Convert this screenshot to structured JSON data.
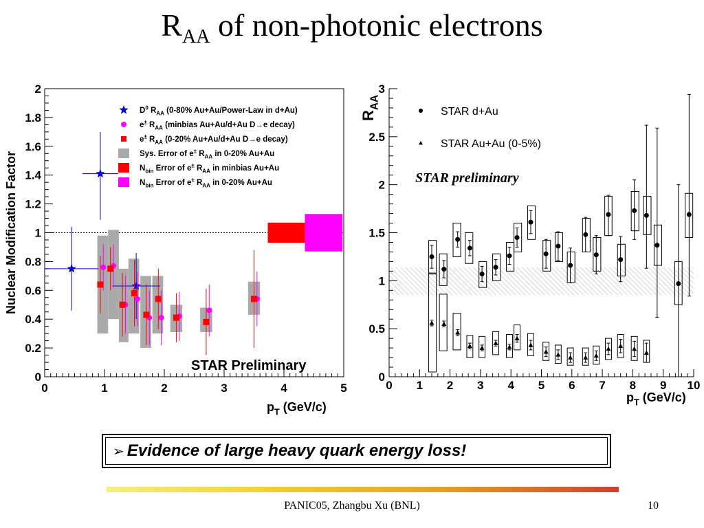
{
  "slide": {
    "title_main": "R",
    "title_sub": "AA",
    "title_rest": " of non-photonic electrons",
    "takeaway_arrow": "➢",
    "takeaway": "Evidence of large heavy quark energy loss!",
    "footer": "PANIC05,  Zhangbu Xu (BNL)",
    "page_number": "10"
  },
  "chart_data": [
    {
      "type": "scatter",
      "ylabel": "Nuclear Modification Factor",
      "xlabel_main": "p",
      "xlabel_sub": "T",
      "xlabel_rest": " (GeV/c)",
      "xlim": [
        0,
        5
      ],
      "ylim": [
        0,
        2
      ],
      "xticks": [
        "0",
        "1",
        "2",
        "3",
        "4",
        "5"
      ],
      "yticks": [
        "0",
        "0.2",
        "0.4",
        "0.6",
        "0.8",
        "1",
        "1.2",
        "1.4",
        "1.6",
        "1.8",
        "2"
      ],
      "reference_line": 1,
      "annotation": "STAR Preliminary",
      "legend": [
        {
          "symbol": "star",
          "color": "#0000cc",
          "parts": [
            {
              "t": "D"
            },
            {
              "t": "0",
              "sup": true
            },
            {
              "t": " R"
            },
            {
              "t": "AA",
              "sub": true
            },
            {
              "t": " (0-80% Au+Au/Power-Law in d+Au)"
            }
          ]
        },
        {
          "symbol": "circle",
          "color": "#ff00ff",
          "parts": [
            {
              "t": "e"
            },
            {
              "t": "±",
              "sup": true
            },
            {
              "t": " R"
            },
            {
              "t": "AA",
              "sub": true
            },
            {
              "t": " (minbias Au+Au/d+Au D"
            },
            {
              "t": "→"
            },
            {
              "t": "e decay)"
            }
          ]
        },
        {
          "symbol": "square",
          "color": "#ff0000",
          "parts": [
            {
              "t": "e"
            },
            {
              "t": "±",
              "sup": true
            },
            {
              "t": " R"
            },
            {
              "t": "AA",
              "sub": true
            },
            {
              "t": " (0-20% Au+Au/d+Au D"
            },
            {
              "t": "→"
            },
            {
              "t": "e decay)"
            }
          ]
        },
        {
          "symbol": "box",
          "color": "#aaaaaa",
          "parts": [
            {
              "t": "Sys. Error of e"
            },
            {
              "t": "±",
              "sup": true
            },
            {
              "t": " R"
            },
            {
              "t": "AA",
              "sub": true
            },
            {
              "t": " in 0-20% Au+Au"
            }
          ]
        },
        {
          "symbol": "box",
          "color": "#ff0000",
          "parts": [
            {
              "t": "N"
            },
            {
              "t": "bin",
              "sub": true
            },
            {
              "t": " Error of e"
            },
            {
              "t": "±",
              "sup": true
            },
            {
              "t": " R"
            },
            {
              "t": "AA",
              "sub": true
            },
            {
              "t": " in minbias Au+Au"
            }
          ]
        },
        {
          "symbol": "box",
          "color": "#ff00ff",
          "parts": [
            {
              "t": "N"
            },
            {
              "t": "bin",
              "sub": true
            },
            {
              "t": " Error of e"
            },
            {
              "t": "±",
              "sup": true
            },
            {
              "t": " R"
            },
            {
              "t": "AA",
              "sub": true
            },
            {
              "t": " in 0-20% Au+Au"
            }
          ]
        }
      ],
      "series": [
        {
          "marker": "star",
          "color": "#0000cc",
          "points": [
            {
              "x": 0.45,
              "y": 0.75,
              "xerr": 0.45,
              "ylo": 0.46,
              "yhi": 1.04
            },
            {
              "x": 0.93,
              "y": 1.41,
              "xerr": 0.3,
              "ylo": 1.09,
              "yhi": 1.7
            },
            {
              "x": 1.53,
              "y": 0.63,
              "xerr": 0.4,
              "ylo": 0.4,
              "yhi": 0.86
            }
          ]
        },
        {
          "marker": "circle",
          "color": "#ff00ff",
          "points": [
            {
              "x": 0.98,
              "y": 0.76,
              "ylo": 0.6,
              "yhi": 0.92
            },
            {
              "x": 1.15,
              "y": 0.77,
              "ylo": 0.62,
              "yhi": 0.92
            },
            {
              "x": 1.35,
              "y": 0.5,
              "ylo": 0.3,
              "yhi": 0.7
            },
            {
              "x": 1.55,
              "y": 0.54,
              "ylo": 0.35,
              "yhi": 0.73
            },
            {
              "x": 1.75,
              "y": 0.41,
              "ylo": 0.22,
              "yhi": 0.6
            },
            {
              "x": 1.95,
              "y": 0.41,
              "ylo": 0.22,
              "yhi": 0.6
            },
            {
              "x": 2.25,
              "y": 0.42,
              "ylo": 0.25,
              "yhi": 0.59
            },
            {
              "x": 2.75,
              "y": 0.46,
              "ylo": 0.28,
              "yhi": 0.64
            },
            {
              "x": 3.55,
              "y": 0.54,
              "ylo": 0.35,
              "yhi": 0.73
            }
          ]
        },
        {
          "marker": "square",
          "color": "#ff0000",
          "points": [
            {
              "x": 0.93,
              "y": 0.64,
              "ylo": 0.44,
              "yhi": 0.84
            },
            {
              "x": 1.1,
              "y": 0.75,
              "ylo": 0.6,
              "yhi": 0.9
            },
            {
              "x": 1.3,
              "y": 0.5,
              "ylo": 0.28,
              "yhi": 0.72
            },
            {
              "x": 1.5,
              "y": 0.58,
              "ylo": 0.35,
              "yhi": 0.81
            },
            {
              "x": 1.7,
              "y": 0.43,
              "ylo": 0.22,
              "yhi": 0.64
            },
            {
              "x": 1.9,
              "y": 0.54,
              "ylo": 0.33,
              "yhi": 0.75
            },
            {
              "x": 2.2,
              "y": 0.41,
              "ylo": 0.24,
              "yhi": 0.58
            },
            {
              "x": 2.7,
              "y": 0.38,
              "ylo": 0.15,
              "yhi": 0.61
            },
            {
              "x": 3.5,
              "y": 0.54,
              "ylo": 0.2,
              "yhi": 0.88
            }
          ]
        }
      ],
      "sys_boxes": [
        {
          "x0": 0.88,
          "x1": 1.06,
          "y0": 0.3,
          "y1": 0.98
        },
        {
          "x0": 1.06,
          "x1": 1.24,
          "y0": 0.4,
          "y1": 1.02
        },
        {
          "x0": 1.24,
          "x1": 1.4,
          "y0": 0.24,
          "y1": 0.75
        },
        {
          "x0": 1.4,
          "x1": 1.58,
          "y0": 0.3,
          "y1": 0.82
        },
        {
          "x0": 1.6,
          "x1": 1.78,
          "y0": 0.2,
          "y1": 0.7
        },
        {
          "x0": 1.8,
          "x1": 1.98,
          "y0": 0.3,
          "y1": 0.7
        },
        {
          "x0": 2.1,
          "x1": 2.3,
          "y0": 0.31,
          "y1": 0.5
        },
        {
          "x0": 2.6,
          "x1": 2.8,
          "y0": 0.31,
          "y1": 0.48
        },
        {
          "x0": 3.4,
          "x1": 3.6,
          "y0": 0.43,
          "y1": 0.66
        }
      ],
      "norm_boxes": [
        {
          "color": "#ff0000",
          "x0": 3.73,
          "x1": 4.35,
          "y0": 0.93,
          "y1": 1.07
        },
        {
          "color": "#ff00ff",
          "x0": 4.35,
          "x1": 4.98,
          "y0": 0.87,
          "y1": 1.13
        }
      ]
    },
    {
      "type": "scatter",
      "ylabel_main": "R",
      "ylabel_sub": "AA",
      "xlabel_main": "p",
      "xlabel_sub": "T",
      "xlabel_rest": " (GeV/c)",
      "xlim": [
        0,
        10
      ],
      "ylim": [
        0,
        3
      ],
      "xticks": [
        "0",
        "1",
        "2",
        "3",
        "4",
        "5",
        "6",
        "7",
        "8",
        "9",
        "10"
      ],
      "yticks": [
        "0",
        "0.5",
        "1",
        "1.5",
        "2",
        "2.5",
        "3"
      ],
      "annotation": "STAR preliminary",
      "band": {
        "y0": 0.85,
        "y1": 1.14
      },
      "legend": [
        {
          "symbol": "circle",
          "label": "STAR d+Au"
        },
        {
          "symbol": "triangle",
          "label": "STAR Au+Au (0-5%)"
        }
      ],
      "series": [
        {
          "name": "STAR d+Au",
          "marker": "circle",
          "points": [
            {
              "x": 1.4,
              "y": 1.25,
              "bx0": 1.3,
              "bx1": 1.55,
              "by0": 1.07,
              "by1": 1.42,
              "elo": 0.12,
              "ehi": 0.12
            },
            {
              "x": 1.8,
              "y": 1.12,
              "bx0": 1.65,
              "bx1": 1.9,
              "by0": 0.95,
              "by1": 1.28,
              "elo": 0.09,
              "ehi": 0.09
            },
            {
              "x": 2.25,
              "y": 1.43,
              "bx0": 2.1,
              "bx1": 2.35,
              "by0": 1.25,
              "by1": 1.6,
              "elo": 0.08,
              "ehi": 0.08
            },
            {
              "x": 2.65,
              "y": 1.34,
              "bx0": 2.5,
              "bx1": 2.75,
              "by0": 1.18,
              "by1": 1.5,
              "elo": 0.08,
              "ehi": 0.08
            },
            {
              "x": 3.05,
              "y": 1.07,
              "bx0": 2.95,
              "bx1": 3.2,
              "by0": 0.93,
              "by1": 1.2,
              "elo": 0.08,
              "ehi": 0.08
            },
            {
              "x": 3.5,
              "y": 1.14,
              "bx0": 3.4,
              "bx1": 3.65,
              "by0": 1.0,
              "by1": 1.28,
              "elo": 0.08,
              "ehi": 0.08
            },
            {
              "x": 3.95,
              "y": 1.26,
              "bx0": 3.85,
              "bx1": 4.1,
              "by0": 1.1,
              "by1": 1.4,
              "elo": 0.09,
              "ehi": 0.09
            },
            {
              "x": 4.2,
              "y": 1.45,
              "bx0": 4.1,
              "bx1": 4.35,
              "by0": 1.3,
              "by1": 1.6,
              "elo": 0.1,
              "ehi": 0.1
            },
            {
              "x": 4.65,
              "y": 1.61,
              "bx0": 4.55,
              "bx1": 4.8,
              "by0": 1.43,
              "by1": 1.78,
              "elo": 0.12,
              "ehi": 0.12
            },
            {
              "x": 5.15,
              "y": 1.28,
              "bx0": 5.05,
              "bx1": 5.3,
              "by0": 1.1,
              "by1": 1.42,
              "elo": 0.15,
              "ehi": 0.15
            },
            {
              "x": 5.55,
              "y": 1.36,
              "bx0": 5.45,
              "bx1": 5.7,
              "by0": 1.2,
              "by1": 1.5,
              "elo": 0.15,
              "ehi": 0.15
            },
            {
              "x": 5.95,
              "y": 1.16,
              "bx0": 5.85,
              "bx1": 6.1,
              "by0": 0.98,
              "by1": 1.3,
              "elo": 0.18,
              "ehi": 0.18
            },
            {
              "x": 6.45,
              "y": 1.48,
              "bx0": 6.35,
              "bx1": 6.6,
              "by0": 1.3,
              "by1": 1.65,
              "elo": 0.18,
              "ehi": 0.18
            },
            {
              "x": 6.8,
              "y": 1.27,
              "bx0": 6.7,
              "bx1": 6.95,
              "by0": 1.1,
              "by1": 1.45,
              "elo": 0.2,
              "ehi": 0.2
            },
            {
              "x": 7.2,
              "y": 1.69,
              "bx0": 7.08,
              "bx1": 7.32,
              "by0": 1.47,
              "by1": 1.88,
              "elo": 0.22,
              "ehi": 0.2
            },
            {
              "x": 7.6,
              "y": 1.22,
              "bx0": 7.5,
              "bx1": 7.75,
              "by0": 1.05,
              "by1": 1.38,
              "elo": 0.23,
              "ehi": 0.24
            },
            {
              "x": 8.05,
              "y": 1.73,
              "bx0": 7.95,
              "bx1": 8.2,
              "by0": 1.52,
              "by1": 1.93,
              "elo": 0.3,
              "ehi": 0.32
            },
            {
              "x": 8.45,
              "y": 1.68,
              "bx0": 8.35,
              "bx1": 8.6,
              "by0": 1.48,
              "by1": 1.88,
              "elo": 0.55,
              "ehi": 0.94
            },
            {
              "x": 8.8,
              "y": 1.37,
              "bx0": 8.7,
              "bx1": 8.95,
              "by0": 1.16,
              "by1": 1.58,
              "elo": 0.75,
              "ehi": 1.22
            },
            {
              "x": 9.5,
              "y": 0.97,
              "bx0": 9.38,
              "bx1": 9.62,
              "by0": 0.75,
              "by1": 1.2,
              "elo": 0.97,
              "ehi": 1.03
            },
            {
              "x": 9.85,
              "y": 1.69,
              "bx0": 9.72,
              "bx1": 9.97,
              "by0": 1.45,
              "by1": 1.91,
              "elo": 0.85,
              "ehi": 1.25
            }
          ]
        },
        {
          "name": "STAR Au+Au (0-5%)",
          "marker": "triangle",
          "points": [
            {
              "x": 1.4,
              "y": 0.56,
              "bx0": 1.3,
              "bx1": 1.55,
              "by0": 0.05,
              "by1": 1.08,
              "elo": 0.03,
              "ehi": 0.03
            },
            {
              "x": 1.8,
              "y": 0.55,
              "bx0": 1.65,
              "bx1": 1.9,
              "by0": 0.27,
              "by1": 0.86,
              "elo": 0.03,
              "ehi": 0.03
            },
            {
              "x": 2.25,
              "y": 0.46,
              "bx0": 2.1,
              "bx1": 2.35,
              "by0": 0.28,
              "by1": 0.66,
              "elo": 0.03,
              "ehi": 0.03
            },
            {
              "x": 2.65,
              "y": 0.32,
              "bx0": 2.55,
              "bx1": 2.75,
              "by0": 0.2,
              "by1": 0.43,
              "elo": 0.03,
              "ehi": 0.03
            },
            {
              "x": 3.05,
              "y": 0.3,
              "bx0": 2.95,
              "bx1": 3.15,
              "by0": 0.2,
              "by1": 0.42,
              "elo": 0.03,
              "ehi": 0.03
            },
            {
              "x": 3.5,
              "y": 0.35,
              "bx0": 3.4,
              "bx1": 3.6,
              "by0": 0.23,
              "by1": 0.47,
              "elo": 0.03,
              "ehi": 0.03
            },
            {
              "x": 3.95,
              "y": 0.31,
              "bx0": 3.85,
              "bx1": 4.05,
              "by0": 0.2,
              "by1": 0.44,
              "elo": 0.03,
              "ehi": 0.03
            },
            {
              "x": 4.2,
              "y": 0.4,
              "bx0": 4.1,
              "bx1": 4.3,
              "by0": 0.28,
              "by1": 0.54,
              "elo": 0.04,
              "ehi": 0.04
            },
            {
              "x": 4.65,
              "y": 0.33,
              "bx0": 4.55,
              "bx1": 4.75,
              "by0": 0.22,
              "by1": 0.45,
              "elo": 0.05,
              "ehi": 0.05
            },
            {
              "x": 5.15,
              "y": 0.26,
              "bx0": 5.05,
              "bx1": 5.25,
              "by0": 0.17,
              "by1": 0.36,
              "elo": 0.05,
              "ehi": 0.05
            },
            {
              "x": 5.55,
              "y": 0.23,
              "bx0": 5.45,
              "bx1": 5.65,
              "by0": 0.14,
              "by1": 0.33,
              "elo": 0.05,
              "ehi": 0.05
            },
            {
              "x": 5.95,
              "y": 0.2,
              "bx0": 5.85,
              "bx1": 6.05,
              "by0": 0.12,
              "by1": 0.3,
              "elo": 0.05,
              "ehi": 0.05
            },
            {
              "x": 6.45,
              "y": 0.2,
              "bx0": 6.35,
              "bx1": 6.55,
              "by0": 0.12,
              "by1": 0.3,
              "elo": 0.05,
              "ehi": 0.05
            },
            {
              "x": 6.8,
              "y": 0.22,
              "bx0": 6.7,
              "bx1": 6.9,
              "by0": 0.13,
              "by1": 0.32,
              "elo": 0.05,
              "ehi": 0.05
            },
            {
              "x": 7.2,
              "y": 0.29,
              "bx0": 7.1,
              "bx1": 7.3,
              "by0": 0.18,
              "by1": 0.4,
              "elo": 0.06,
              "ehi": 0.06
            },
            {
              "x": 7.6,
              "y": 0.32,
              "bx0": 7.5,
              "bx1": 7.7,
              "by0": 0.2,
              "by1": 0.44,
              "elo": 0.07,
              "ehi": 0.07
            },
            {
              "x": 8.05,
              "y": 0.29,
              "bx0": 7.95,
              "bx1": 8.15,
              "by0": 0.17,
              "by1": 0.42,
              "elo": 0.08,
              "ehi": 0.08
            },
            {
              "x": 8.45,
              "y": 0.25,
              "bx0": 8.35,
              "bx1": 8.55,
              "by0": 0.15,
              "by1": 0.38,
              "elo": 0.1,
              "ehi": 0.1
            }
          ]
        }
      ]
    }
  ]
}
